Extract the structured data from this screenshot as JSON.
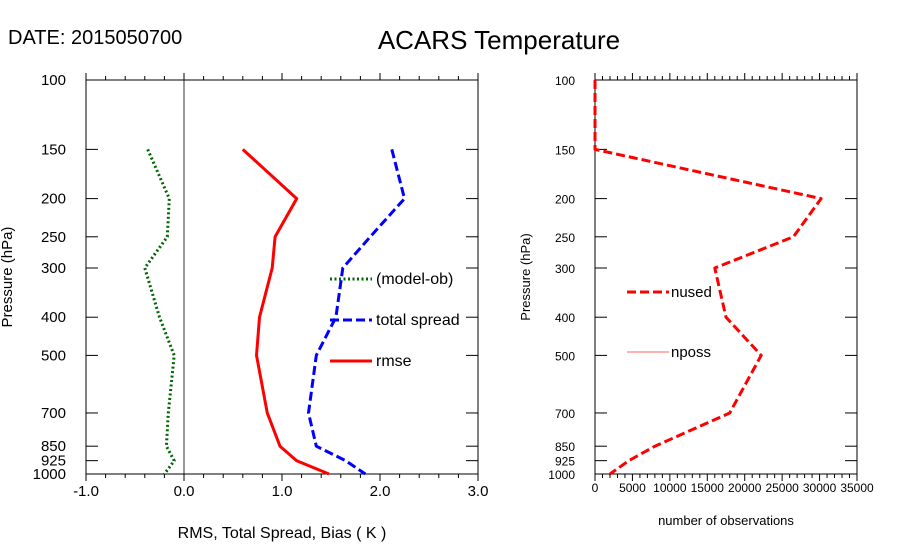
{
  "header": {
    "date_label": "DATE: 2015050700",
    "title": "ACARS Temperature"
  },
  "chart_data": [
    {
      "type": "line",
      "ylabel": "Pressure (hPa)",
      "xlabel": "RMS, Total Spread, Bias ( K )",
      "y_scale": "log",
      "y_reversed": true,
      "ylim": [
        1000,
        100
      ],
      "xlim": [
        -1.0,
        3.0
      ],
      "y_ticks": [
        100,
        150,
        200,
        250,
        300,
        400,
        500,
        700,
        850,
        925,
        1000
      ],
      "x_ticks": [
        -1.0,
        0.0,
        1.0,
        2.0,
        3.0
      ],
      "x_tick_labels": [
        "-1.0",
        "0.0",
        "1.0",
        "2.0",
        "3.0"
      ],
      "zero_line": 0.0,
      "legend_placement": "right",
      "series": [
        {
          "name": "(model-ob)",
          "color": "#006400",
          "style": "dotted",
          "points": [
            [
              -0.37,
              150
            ],
            [
              -0.15,
              200
            ],
            [
              -0.17,
              250
            ],
            [
              -0.4,
              300
            ],
            [
              -0.25,
              400
            ],
            [
              -0.1,
              500
            ],
            [
              -0.16,
              700
            ],
            [
              -0.18,
              850
            ],
            [
              -0.1,
              925
            ],
            [
              -0.2,
              1000
            ]
          ]
        },
        {
          "name": "total spread",
          "color": "#0000ff",
          "style": "dashed",
          "points": [
            [
              2.12,
              150
            ],
            [
              2.25,
              200
            ],
            [
              1.9,
              250
            ],
            [
              1.62,
              300
            ],
            [
              1.55,
              400
            ],
            [
              1.35,
              500
            ],
            [
              1.27,
              700
            ],
            [
              1.35,
              850
            ],
            [
              1.65,
              925
            ],
            [
              1.85,
              1000
            ]
          ]
        },
        {
          "name": "rmse",
          "color": "#ff0000",
          "style": "solid",
          "points": [
            [
              0.6,
              150
            ],
            [
              1.15,
              200
            ],
            [
              0.93,
              250
            ],
            [
              0.9,
              300
            ],
            [
              0.77,
              400
            ],
            [
              0.74,
              500
            ],
            [
              0.85,
              700
            ],
            [
              0.98,
              850
            ],
            [
              1.15,
              925
            ],
            [
              1.48,
              1000
            ]
          ]
        }
      ]
    },
    {
      "type": "line",
      "ylabel": "Pressure (hPa)",
      "xlabel": "number of observations",
      "y_scale": "log",
      "y_reversed": true,
      "ylim": [
        1000,
        100
      ],
      "xlim": [
        0,
        35000
      ],
      "y_ticks": [
        100,
        150,
        200,
        250,
        300,
        400,
        500,
        700,
        850,
        925,
        1000
      ],
      "x_ticks": [
        0,
        5000,
        10000,
        15000,
        20000,
        25000,
        30000,
        35000
      ],
      "x_tick_labels": [
        "0",
        "5000",
        "10000",
        "15000",
        "20000",
        "25000",
        "30000",
        "35000"
      ],
      "legend_placement": "left",
      "series": [
        {
          "name": "nused",
          "color": "#ff0000",
          "style": "dashed",
          "points": [
            [
              0,
              100
            ],
            [
              0,
              150
            ],
            [
              30200,
              200
            ],
            [
              26500,
              250
            ],
            [
              16000,
              300
            ],
            [
              17500,
              400
            ],
            [
              22200,
              500
            ],
            [
              18000,
              700
            ],
            [
              8000,
              850
            ],
            [
              4500,
              925
            ],
            [
              2000,
              1000
            ]
          ]
        },
        {
          "name": "nposs",
          "color": "#ff6666",
          "style": "thin",
          "points": []
        }
      ]
    }
  ]
}
